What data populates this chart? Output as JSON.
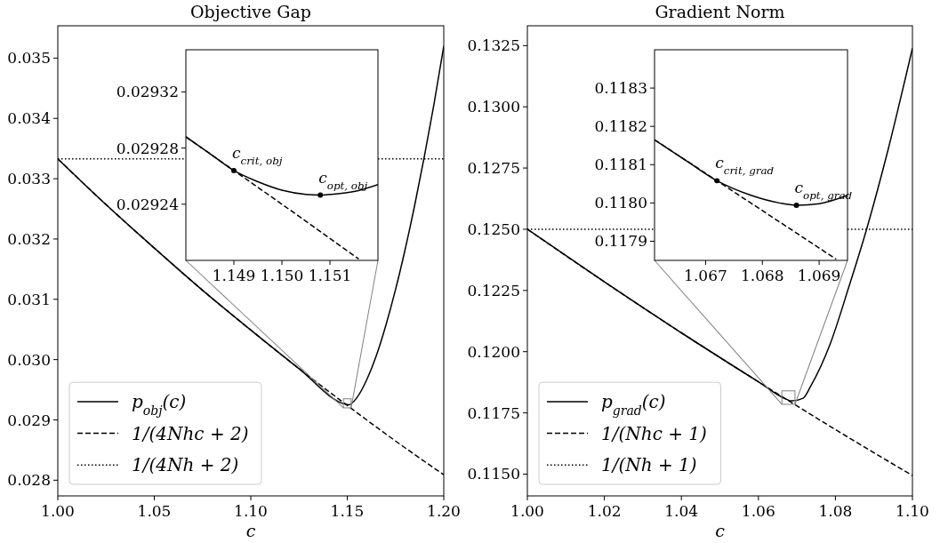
{
  "chart_data": [
    {
      "type": "line",
      "title": "Objective Gap",
      "xlabel": "c",
      "xlim": [
        1.0,
        1.2
      ],
      "ylim": [
        0.02774,
        0.035536
      ],
      "xticks": [
        {
          "value": 1.0,
          "label": "1.00"
        },
        {
          "value": 1.05,
          "label": "1.05"
        },
        {
          "value": 1.1,
          "label": "1.10"
        },
        {
          "value": 1.15,
          "label": "1.15"
        },
        {
          "value": 1.2,
          "label": "1.20"
        }
      ],
      "yticks": [
        0.028,
        0.029,
        {
          "value": 0.03,
          "label": "0.030"
        },
        0.031,
        0.032,
        0.033,
        0.034,
        0.035
      ],
      "legend": "bottom left",
      "series": [
        {
          "name": "p$_{obj}$(c)",
          "color": "#000000",
          "line_style": "solid",
          "x": [
            1.0,
            1.025,
            1.05,
            1.075,
            1.1,
            1.125,
            1.149,
            1.1508,
            1.155,
            1.16,
            1.165,
            1.17,
            1.175,
            1.18,
            1.185,
            1.19,
            1.195,
            1.2
          ],
          "values": [
            0.03333,
            0.03257,
            0.03185,
            0.03115,
            0.03049,
            0.02985,
            0.02926,
            0.02925,
            0.02937,
            0.02966,
            0.03006,
            0.03057,
            0.03116,
            0.03183,
            0.03257,
            0.03338,
            0.03425,
            0.0352
          ]
        },
        {
          "name": "1/(4Nhc + 2)",
          "color": "#000000",
          "line_style": "dashed",
          "x": [
            1.0,
            1.025,
            1.05,
            1.075,
            1.1,
            1.125,
            1.15,
            1.175,
            1.2
          ],
          "values": [
            0.03333,
            0.03257,
            0.03185,
            0.03115,
            0.03049,
            0.02985,
            0.02924,
            0.02865,
            0.02809
          ]
        },
        {
          "name": "1/(4Nh + 2)",
          "color": "#000000",
          "line_style": "dotted",
          "x": [
            1.0,
            1.2
          ],
          "values": [
            0.03333,
            0.03333
          ]
        }
      ]
    },
    {
      "type": "line",
      "xlim": [
        1.148,
        1.152
      ],
      "ylim": [
        0.0292,
        0.02935
      ],
      "xticks": [
        1.149,
        {
          "value": 1.15,
          "label": "1.150"
        },
        1.151
      ],
      "yticks": [
        0.02924,
        0.02928,
        0.02932
      ],
      "series": [
        {
          "color": "#000000",
          "line_style": "solid",
          "x": [
            1.148,
            1.1485,
            1.149,
            1.1495,
            1.15,
            1.1505,
            1.1508,
            1.151,
            1.1515,
            1.152
          ],
          "values": [
            0.029288,
            0.029276,
            0.029264,
            0.029256,
            0.02925,
            0.029247,
            0.0292465,
            0.029247,
            0.029249,
            0.029254
          ]
        },
        {
          "color": "#000000",
          "line_style": "dashed",
          "x": [
            1.148,
            1.149,
            1.15,
            1.1516
          ],
          "values": [
            0.029288,
            0.029264,
            0.02924,
            0.029201
          ]
        },
        {
          "type": "scatter",
          "color": "#000000",
          "marker": "circle",
          "x": [
            1.149,
            1.1508
          ],
          "values": [
            0.029264,
            0.0292465
          ]
        }
      ],
      "annotations": [
        {
          "text": "c$_{crit, obj}$",
          "x": 1.149,
          "y": 0.029264
        },
        {
          "text": "c$_{opt, obj}$",
          "x": 1.1508,
          "y": 0.0292465
        }
      ]
    },
    {
      "type": "line",
      "title": "Gradient Norm",
      "xlabel": "c",
      "xlim": [
        1.0,
        1.1
      ],
      "ylim": [
        0.11411,
        0.13331
      ],
      "xticks": [
        {
          "value": 1.0,
          "label": "1.00"
        },
        {
          "value": 1.02,
          "label": "1.02"
        },
        {
          "value": 1.04,
          "label": "1.04"
        },
        {
          "value": 1.06,
          "label": "1.06"
        },
        {
          "value": 1.08,
          "label": "1.08"
        },
        {
          "value": 1.1,
          "label": "1.10"
        }
      ],
      "yticks": [
        {
          "value": 0.115,
          "label": "0.1150"
        },
        0.1175,
        {
          "value": 0.12,
          "label": "0.1200"
        },
        0.1225,
        {
          "value": 0.125,
          "label": "0.1250"
        },
        0.1275,
        {
          "value": 0.13,
          "label": "0.1300"
        },
        0.1325
      ],
      "legend": "bottom left",
      "series": [
        {
          "name": "p$_{grad}$(c)",
          "color": "#000000",
          "line_style": "solid",
          "x": [
            1.0,
            1.02,
            1.04,
            1.06,
            1.0672,
            1.0686,
            1.0716,
            1.0736,
            1.0786,
            1.0836,
            1.0881,
            1.0936,
            1.1
          ],
          "values": [
            0.125,
            0.12285,
            0.12077,
            0.11877,
            0.11806,
            0.11799,
            0.1181,
            0.1186,
            0.1203,
            0.1227,
            0.125,
            0.1282,
            0.1324
          ]
        },
        {
          "name": "1/(Nhc + 1)",
          "color": "#000000",
          "line_style": "dashed",
          "x": [
            1.0,
            1.02,
            1.04,
            1.06,
            1.08,
            1.1
          ],
          "values": [
            0.125,
            0.12285,
            0.12077,
            0.11877,
            0.11682,
            0.11494
          ]
        },
        {
          "name": "1/(Nh + 1)",
          "color": "#000000",
          "line_style": "dotted",
          "x": [
            1.0,
            1.1
          ],
          "values": [
            0.125,
            0.125
          ]
        }
      ]
    },
    {
      "type": "line",
      "xlim": [
        1.0661,
        1.0695
      ],
      "ylim": [
        0.11785,
        0.1184
      ],
      "xticks": [
        1.067,
        1.068,
        1.069
      ],
      "yticks": [
        0.1179,
        {
          "value": 0.118,
          "label": "0.1180"
        },
        0.1181,
        0.1182,
        0.1183
      ],
      "series": [
        {
          "color": "#000000",
          "line_style": "solid",
          "x": [
            1.0661,
            1.0667,
            1.0672,
            1.0678,
            1.0683,
            1.0686,
            1.069,
            1.0695
          ],
          "values": [
            0.118165,
            0.118106,
            0.118058,
            0.11802,
            0.118,
            0.117994,
            0.117998,
            0.11802
          ]
        },
        {
          "color": "#000000",
          "line_style": "dashed",
          "x": [
            1.0661,
            1.0672,
            1.068,
            1.0693
          ],
          "values": [
            0.118165,
            0.118058,
            0.11798,
            0.117853
          ]
        },
        {
          "type": "scatter",
          "color": "#000000",
          "marker": "circle",
          "x": [
            1.0672,
            1.0686
          ],
          "values": [
            0.118058,
            0.117994
          ]
        }
      ],
      "annotations": [
        {
          "text": "c$_{crit, grad}$",
          "x": 1.0672,
          "y": 0.118058
        },
        {
          "text": "c$_{opt, grad}$",
          "x": 1.0686,
          "y": 0.117994
        }
      ]
    }
  ]
}
